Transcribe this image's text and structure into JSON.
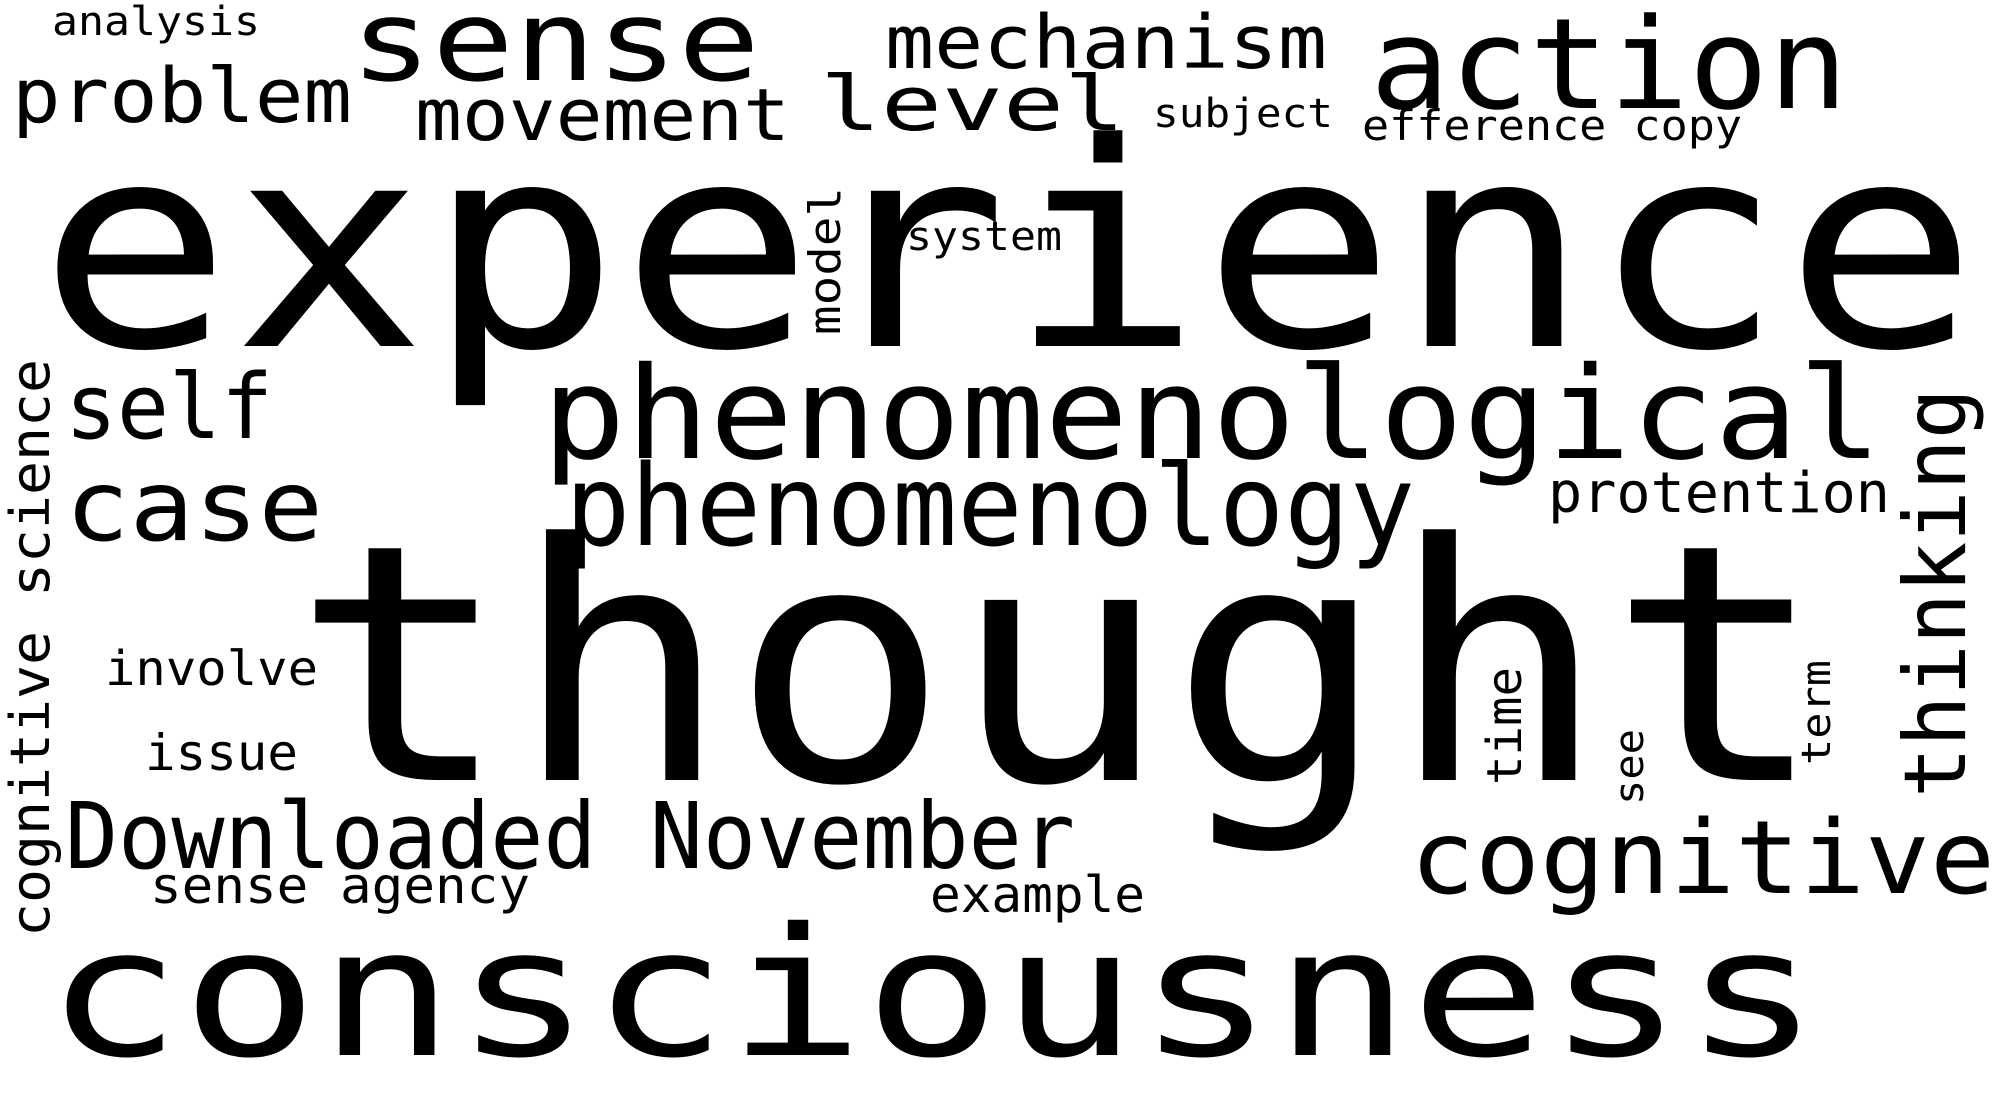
{
  "word_cloud": {
    "background_color": "#ffffff",
    "text_color": "#000000",
    "words": [
      "experience",
      "thought",
      "consciousness",
      "phenomenological",
      "phenomenology",
      "sense",
      "action",
      "mechanism",
      "problem",
      "movement",
      "level",
      "analysis",
      "subject",
      "efference copy",
      "system",
      "model",
      "self",
      "case",
      "thinking",
      "protention",
      "cognitive science",
      "involve",
      "issue",
      "Downloaded November",
      "cognitive",
      "time",
      "see",
      "term",
      "sense agency",
      "example"
    ]
  }
}
